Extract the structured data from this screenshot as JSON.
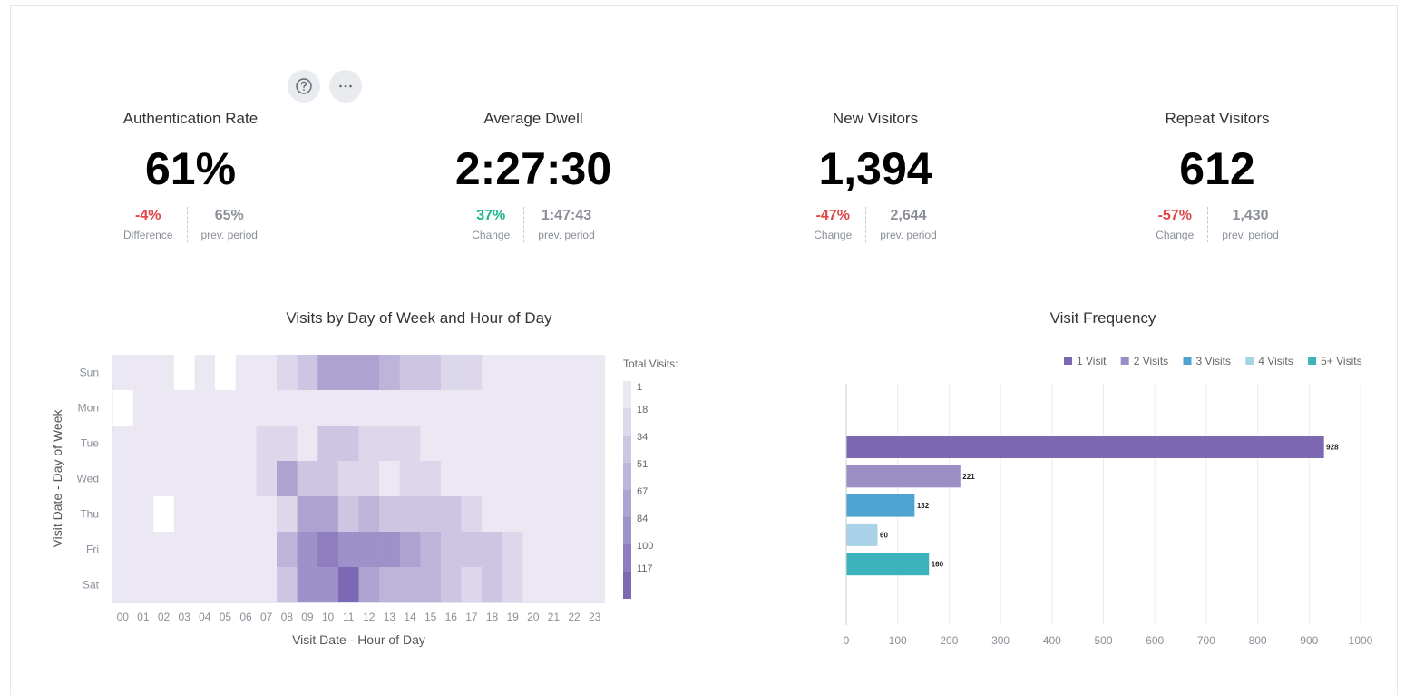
{
  "toolbar": {
    "help_icon": "question-circle-icon",
    "more_icon": "ellipsis-icon"
  },
  "kpis": [
    {
      "title": "Authentication Rate",
      "value": "61%",
      "delta": "-4%",
      "delta_label": "Difference",
      "prev": "65%",
      "prev_label": "prev. period",
      "delta_sign": "neg"
    },
    {
      "title": "Average Dwell",
      "value": "2:27:30",
      "delta": "37%",
      "delta_label": "Change",
      "prev": "1:47:43",
      "prev_label": "prev. period",
      "delta_sign": "pos"
    },
    {
      "title": "New Visitors",
      "value": "1,394",
      "delta": "-47%",
      "delta_label": "Change",
      "prev": "2,644",
      "prev_label": "prev. period",
      "delta_sign": "neg"
    },
    {
      "title": "Repeat Visitors",
      "value": "612",
      "delta": "-57%",
      "delta_label": "Change",
      "prev": "1,430",
      "prev_label": "prev. period",
      "delta_sign": "neg"
    }
  ],
  "chart_data": [
    {
      "type": "heatmap",
      "title": "Visits by Day of Week and Hour of Day",
      "xlabel": "Visit Date - Hour of Day",
      "ylabel": "Visit Date - Day of Week",
      "x_categories": [
        "00",
        "01",
        "02",
        "03",
        "04",
        "05",
        "06",
        "07",
        "08",
        "09",
        "10",
        "11",
        "12",
        "13",
        "14",
        "15",
        "16",
        "17",
        "18",
        "19",
        "20",
        "21",
        "22",
        "23"
      ],
      "y_categories": [
        "Sun",
        "Mon",
        "Tue",
        "Wed",
        "Thu",
        "Fri",
        "Sat"
      ],
      "legend_title": "Total Visits:",
      "legend_values": [
        "1",
        "18",
        "34",
        "51",
        "67",
        "84",
        "100",
        "117"
      ],
      "legend_colors": [
        "#ebe8f3",
        "#dcd7eb",
        "#cdc6e3",
        "#bdb4da",
        "#aea2d1",
        "#9e90c8",
        "#8e7ebf",
        "#7c69b4"
      ],
      "empty_color": "#ffffff",
      "values": [
        [
          4,
          4,
          4,
          null,
          4,
          null,
          4,
          4,
          18,
          34,
          67,
          67,
          67,
          51,
          34,
          34,
          18,
          18,
          4,
          4,
          4,
          4,
          4,
          4
        ],
        [
          null,
          4,
          4,
          4,
          4,
          4,
          4,
          4,
          4,
          4,
          4,
          4,
          4,
          4,
          4,
          4,
          4,
          4,
          4,
          4,
          4,
          4,
          4,
          4
        ],
        [
          4,
          4,
          4,
          4,
          4,
          4,
          4,
          18,
          18,
          4,
          34,
          34,
          18,
          18,
          18,
          4,
          4,
          4,
          4,
          4,
          4,
          4,
          4,
          4
        ],
        [
          4,
          4,
          4,
          4,
          4,
          4,
          4,
          18,
          67,
          34,
          34,
          18,
          18,
          2,
          18,
          18,
          4,
          4,
          4,
          4,
          4,
          4,
          4,
          4
        ],
        [
          4,
          4,
          null,
          4,
          4,
          4,
          4,
          4,
          18,
          67,
          67,
          34,
          51,
          34,
          34,
          34,
          34,
          18,
          4,
          4,
          4,
          4,
          4,
          4
        ],
        [
          4,
          4,
          4,
          4,
          4,
          4,
          4,
          4,
          51,
          84,
          100,
          84,
          84,
          84,
          67,
          51,
          34,
          34,
          34,
          18,
          4,
          4,
          4,
          4
        ],
        [
          4,
          4,
          4,
          4,
          4,
          4,
          4,
          4,
          34,
          84,
          84,
          117,
          67,
          51,
          51,
          51,
          34,
          18,
          34,
          18,
          4,
          4,
          4,
          4
        ]
      ]
    },
    {
      "type": "bar",
      "orientation": "horizontal",
      "title": "Visit Frequency",
      "categories": [
        "1 Visit",
        "2 Visits",
        "3 Visits",
        "4 Visits",
        "5+ Visits"
      ],
      "values": [
        928,
        221,
        132,
        60,
        160
      ],
      "colors": [
        "#7b68b0",
        "#9b8ec5",
        "#4ea3d0",
        "#a7d2e8",
        "#3cb3bc"
      ],
      "xlim": [
        0,
        1000
      ],
      "x_ticks": [
        "0",
        "100",
        "200",
        "300",
        "400",
        "500",
        "600",
        "700",
        "800",
        "900",
        "1000"
      ],
      "legend_position": "top-right"
    }
  ]
}
